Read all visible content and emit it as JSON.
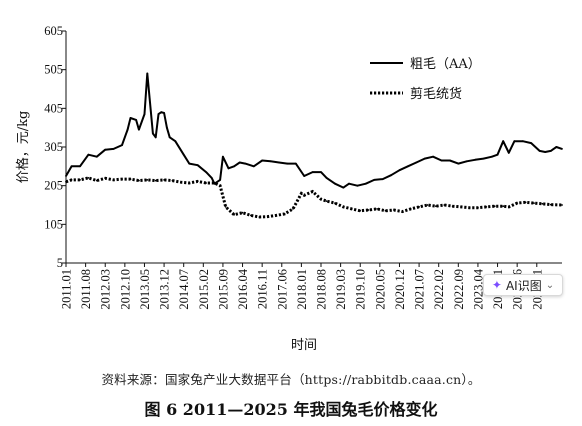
{
  "chart_data": {
    "type": "line",
    "title": "",
    "xlabel": "时间",
    "ylabel": "价格，元/kg",
    "ylim": [
      5,
      605
    ],
    "yticks": [
      5,
      105,
      205,
      305,
      405,
      505,
      605
    ],
    "xlim": [
      "2011.01",
      "2025.10"
    ],
    "xtick_labels": [
      "2011.01",
      "2011.08",
      "2012.03",
      "2012.10",
      "2013.05",
      "2013.12",
      "2014.07",
      "2015.02",
      "2015.09",
      "2016.04",
      "2016.11",
      "2017.06",
      "2018.01",
      "2018.08",
      "2019.03",
      "2019.10",
      "2020.05",
      "2020.12",
      "2021.07",
      "2022.02",
      "2022.09",
      "2023.04",
      "2023.11",
      "2024.06",
      "2025.01"
    ],
    "grid": false,
    "legend_position": "top-right",
    "series": [
      {
        "name": "粗毛（AA）",
        "style": "solid",
        "color": "#000000",
        "x": [
          "2011.01",
          "2011.03",
          "2011.06",
          "2011.09",
          "2011.12",
          "2012.03",
          "2012.06",
          "2012.09",
          "2012.11",
          "2012.12",
          "2013.02",
          "2013.03",
          "2013.05",
          "2013.06",
          "2013.08",
          "2013.09",
          "2013.10",
          "2013.11",
          "2013.12",
          "2014.01",
          "2014.02",
          "2014.04",
          "2014.07",
          "2014.09",
          "2014.12",
          "2015.03",
          "2015.05",
          "2015.06",
          "2015.08",
          "2015.09",
          "2015.11",
          "2016.01",
          "2016.03",
          "2016.05",
          "2016.08",
          "2016.11",
          "2017.02",
          "2017.05",
          "2017.08",
          "2017.11",
          "2018.02",
          "2018.05",
          "2018.08",
          "2018.10",
          "2019.01",
          "2019.04",
          "2019.06",
          "2019.09",
          "2019.12",
          "2020.03",
          "2020.06",
          "2020.09",
          "2020.12",
          "2021.03",
          "2021.06",
          "2021.09",
          "2021.12",
          "2022.03",
          "2022.06",
          "2022.09",
          "2022.12",
          "2023.03",
          "2023.06",
          "2023.09",
          "2023.11",
          "2024.01",
          "2024.03",
          "2024.05",
          "2024.08",
          "2024.11",
          "2025.02",
          "2025.04",
          "2025.06",
          "2025.07",
          "2025.08",
          "2025.10"
        ],
        "y": [
          230,
          255,
          255,
          285,
          280,
          298,
          300,
          310,
          350,
          380,
          375,
          350,
          390,
          495,
          340,
          330,
          390,
          395,
          393,
          355,
          330,
          320,
          285,
          262,
          258,
          240,
          225,
          210,
          220,
          280,
          250,
          255,
          265,
          262,
          255,
          270,
          268,
          265,
          262,
          262,
          230,
          240,
          240,
          225,
          210,
          200,
          210,
          205,
          210,
          220,
          222,
          232,
          245,
          255,
          265,
          275,
          280,
          270,
          270,
          262,
          268,
          272,
          275,
          280,
          285,
          320,
          290,
          320,
          320,
          315,
          295,
          292,
          295,
          300,
          305,
          300
        ]
      },
      {
        "name": "剪毛统货",
        "style": "dotted",
        "color": "#000000",
        "x": [
          "2011.01",
          "2011.03",
          "2011.06",
          "2011.09",
          "2011.12",
          "2012.03",
          "2012.06",
          "2012.09",
          "2012.12",
          "2013.03",
          "2013.06",
          "2013.09",
          "2013.12",
          "2014.03",
          "2014.06",
          "2014.09",
          "2014.12",
          "2015.03",
          "2015.06",
          "2015.08",
          "2015.10",
          "2016.01",
          "2016.04",
          "2016.07",
          "2016.10",
          "2017.01",
          "2017.04",
          "2017.07",
          "2017.10",
          "2018.01",
          "2018.02",
          "2018.05",
          "2018.08",
          "2018.10",
          "2019.01",
          "2019.04",
          "2019.07",
          "2019.10",
          "2020.01",
          "2020.04",
          "2020.07",
          "2020.10",
          "2021.01",
          "2021.04",
          "2021.07",
          "2021.10",
          "2022.01",
          "2022.04",
          "2022.07",
          "2022.10",
          "2023.01",
          "2023.04",
          "2023.07",
          "2023.10",
          "2024.01",
          "2024.03",
          "2024.06",
          "2024.09",
          "2024.12",
          "2025.03",
          "2025.06",
          "2025.10"
        ],
        "y": [
          215,
          220,
          220,
          225,
          218,
          224,
          220,
          222,
          222,
          218,
          220,
          218,
          220,
          218,
          214,
          212,
          216,
          212,
          212,
          205,
          150,
          130,
          135,
          128,
          124,
          125,
          128,
          132,
          145,
          185,
          180,
          190,
          170,
          165,
          160,
          150,
          145,
          140,
          142,
          145,
          140,
          142,
          138,
          145,
          150,
          155,
          152,
          155,
          152,
          150,
          148,
          148,
          150,
          152,
          152,
          150,
          160,
          162,
          160,
          158,
          156,
          155
        ]
      }
    ]
  },
  "source_note": "资料来源：国家兔产业大数据平台（https://rabbitdb.caaa.cn）。",
  "caption": "图 6 2011—2025 年我国兔毛价格变化",
  "overlay_badge": {
    "label": "AI识图",
    "icon": "sparkle-icon",
    "chevron": "chevron-down-icon"
  }
}
